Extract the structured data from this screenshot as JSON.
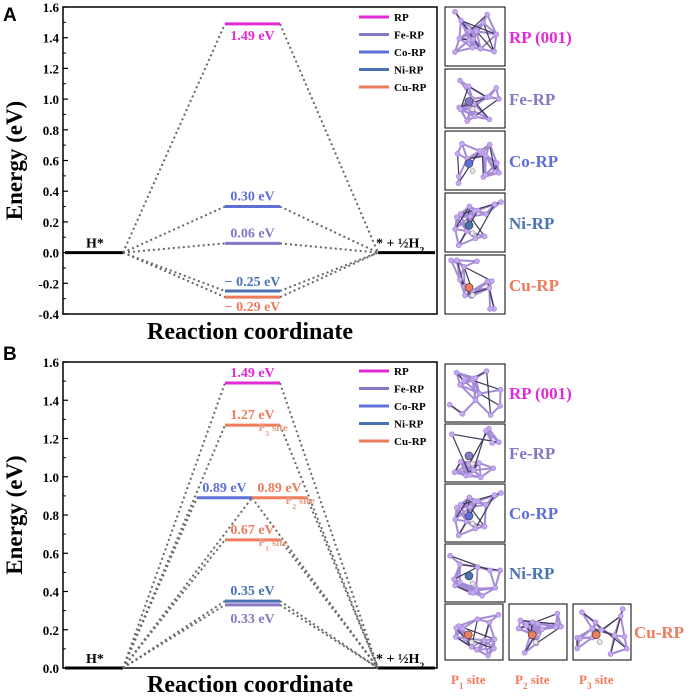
{
  "colors": {
    "RP": "#e22ad7",
    "Fe-RP": "#8877c4",
    "Co-RP": "#5f6fd8",
    "Ni-RP": "#4a73b2",
    "Cu-RP": "#ee7b5c",
    "Cu-RP-sub": "#e89c84",
    "struct_line": "#a48bd6",
    "struct_atom": "#c8a8f0",
    "struct_dark": "#3f3a57"
  },
  "chart_data": [
    {
      "panel": "A",
      "type": "line",
      "xlabel": "Reaction coordinate",
      "ylabel": "Energy (eV)",
      "ylim": [
        -0.4,
        1.6
      ],
      "yticks": [
        "1.6",
        "1.4",
        "1.2",
        "1.0",
        "0.8",
        "0.6",
        "0.4",
        "0.2",
        "0.0",
        "-0.2",
        "-0.4"
      ],
      "initial_label": "H*",
      "final_label_main": "* + ½H",
      "final_label_sub": "2",
      "initial_energy": 0.0,
      "final_energy": 0.0,
      "series": [
        {
          "name": "RP",
          "value": 1.49,
          "label": "1.49 eV"
        },
        {
          "name": "Fe-RP",
          "value": 0.06,
          "label": "0.06 eV"
        },
        {
          "name": "Co-RP",
          "value": 0.3,
          "label": "0.30 eV"
        },
        {
          "name": "Ni-RP",
          "value": -0.25,
          "label": "− 0.25 eV"
        },
        {
          "name": "Cu-RP",
          "value": -0.29,
          "label": "− 0.29 eV"
        }
      ],
      "legend": [
        "RP",
        "Fe-RP",
        "Co-RP",
        "Ni-RP",
        "Cu-RP"
      ],
      "structure_labels": [
        "RP (001)",
        "Fe-RP",
        "Co-RP",
        "Ni-RP",
        "Cu-RP"
      ]
    },
    {
      "panel": "B",
      "type": "line",
      "xlabel": "Reaction coordinate",
      "ylabel": "Energy (eV)",
      "ylim": [
        0.0,
        1.6
      ],
      "yticks": [
        "1.6",
        "1.4",
        "1.2",
        "1.0",
        "0.8",
        "0.6",
        "0.4",
        "0.2",
        "0.0"
      ],
      "initial_label": "H*",
      "final_label_main": "* + ½H",
      "final_label_sub": "2",
      "initial_energy": 0.0,
      "final_energy": 0.0,
      "series": [
        {
          "name": "RP",
          "value": 1.49,
          "label": "1.49 eV"
        },
        {
          "name": "Cu-RP",
          "site": "P3",
          "value": 1.27,
          "label": "1.27 eV",
          "site_label": "P",
          "site_sub": "3",
          "site_word": " site"
        },
        {
          "name": "Co-RP",
          "value": 0.89,
          "label": "0.89 eV"
        },
        {
          "name": "Cu-RP",
          "site": "P2",
          "value": 0.89,
          "label": "0.89 eV",
          "site_label": "P",
          "site_sub": "2",
          "site_word": " site"
        },
        {
          "name": "Cu-RP",
          "site": "P1",
          "value": 0.67,
          "label": "0.67 eV",
          "site_label": "P",
          "site_sub": "1",
          "site_word": " site"
        },
        {
          "name": "Ni-RP",
          "value": 0.35,
          "label": "0.35 eV"
        },
        {
          "name": "Fe-RP",
          "value": 0.33,
          "label": "0.33 eV"
        }
      ],
      "legend": [
        "RP",
        "Fe-RP",
        "Co-RP",
        "Ni-RP",
        "Cu-RP"
      ],
      "structure_labels": [
        "RP (001)",
        "Fe-RP",
        "Co-RP",
        "Ni-RP",
        "Cu-RP"
      ],
      "cu_site_labels": [
        {
          "main": "P",
          "sub": "1",
          "word": " site"
        },
        {
          "main": "P",
          "sub": "2",
          "word": " site"
        },
        {
          "main": "P",
          "sub": "3",
          "word": " site"
        }
      ]
    }
  ]
}
